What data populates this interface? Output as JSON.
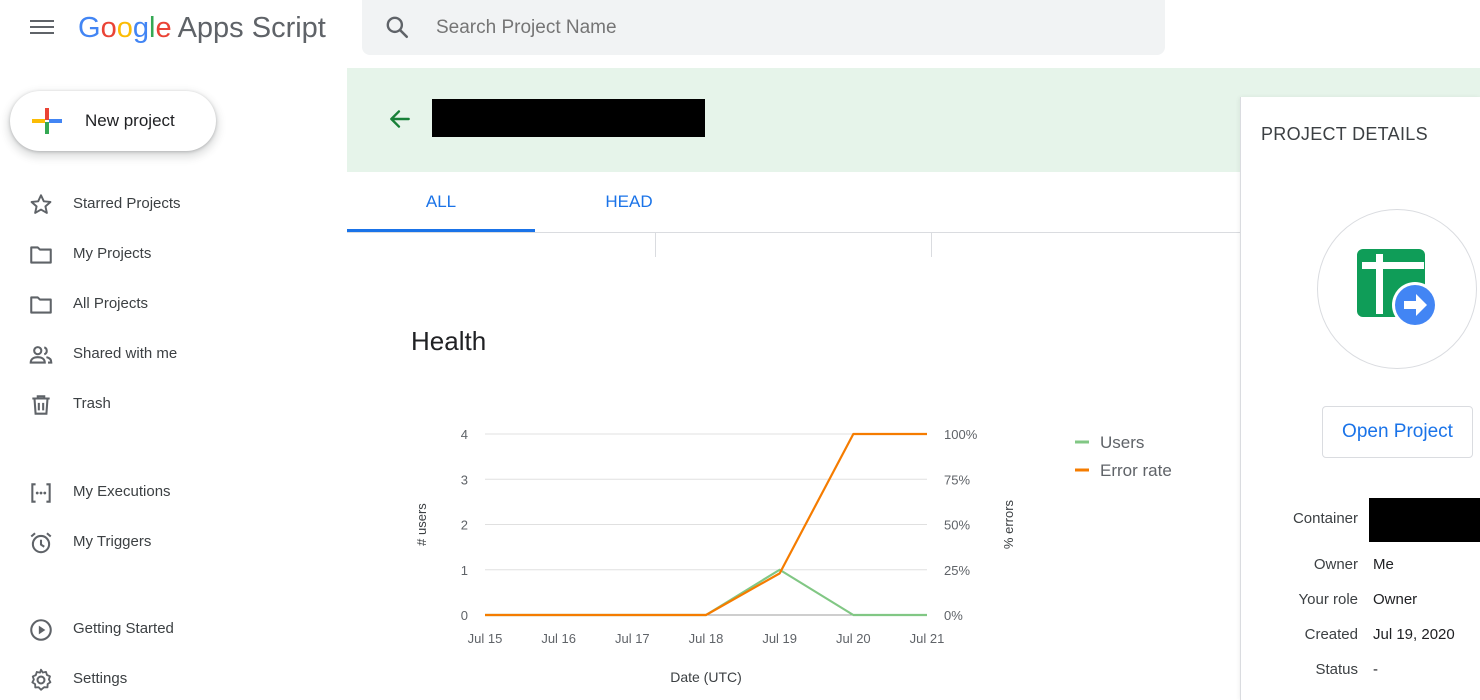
{
  "header": {
    "logo_google": [
      "G",
      "o",
      "o",
      "g",
      "l",
      "e"
    ],
    "logo_product": "Apps Script",
    "search_placeholder": "Search Project Name"
  },
  "new_project_label": "New project",
  "sidebar": {
    "items": [
      {
        "label": "Starred Projects",
        "icon": "star-icon"
      },
      {
        "label": "My Projects",
        "icon": "folder-icon"
      },
      {
        "label": "All Projects",
        "icon": "folder-icon"
      },
      {
        "label": "Shared with me",
        "icon": "people-icon"
      },
      {
        "label": "Trash",
        "icon": "trash-icon"
      },
      {
        "label": "My Executions",
        "icon": "executions-icon"
      },
      {
        "label": "My Triggers",
        "icon": "alarm-icon"
      },
      {
        "label": "Getting Started",
        "icon": "play-circle-icon"
      },
      {
        "label": "Settings",
        "icon": "gear-icon"
      }
    ]
  },
  "tabs": [
    {
      "label": "ALL",
      "active": true
    },
    {
      "label": "HEAD",
      "active": false
    }
  ],
  "health_title": "Health",
  "chart_data": {
    "type": "line",
    "x": [
      "Jul 15",
      "Jul 16",
      "Jul 17",
      "Jul 18",
      "Jul 19",
      "Jul 20",
      "Jul 21"
    ],
    "series": [
      {
        "name": "Users",
        "axis": "left",
        "color": "#81c784",
        "values": [
          0,
          0,
          0,
          0,
          1,
          0,
          0
        ]
      },
      {
        "name": "Error rate",
        "axis": "right",
        "color": "#f57c00",
        "values": [
          0,
          0,
          0,
          0,
          23,
          100,
          100
        ]
      }
    ],
    "left_axis": {
      "label": "# users",
      "ticks": [
        "0",
        "1",
        "2",
        "3",
        "4"
      ],
      "ylim": [
        0,
        4
      ]
    },
    "right_axis": {
      "label": "% errors",
      "ticks": [
        "0%",
        "25%",
        "50%",
        "75%",
        "100%"
      ],
      "ylim": [
        0,
        100
      ]
    },
    "xlabel": "Date (UTC)",
    "legend_position": "right",
    "grid": true
  },
  "panel": {
    "title": "PROJECT DETAILS",
    "open_label": "Open Project",
    "details": [
      {
        "label": "Container",
        "value": ""
      },
      {
        "label": "Owner",
        "value": "Me"
      },
      {
        "label": "Your role",
        "value": "Owner"
      },
      {
        "label": "Created",
        "value": "Jul 19, 2020"
      },
      {
        "label": "Status",
        "value": "-"
      }
    ]
  },
  "colors": {
    "accent": "#1a73e8",
    "header_bg": "#e6f4ea",
    "back_arrow": "#188038"
  }
}
